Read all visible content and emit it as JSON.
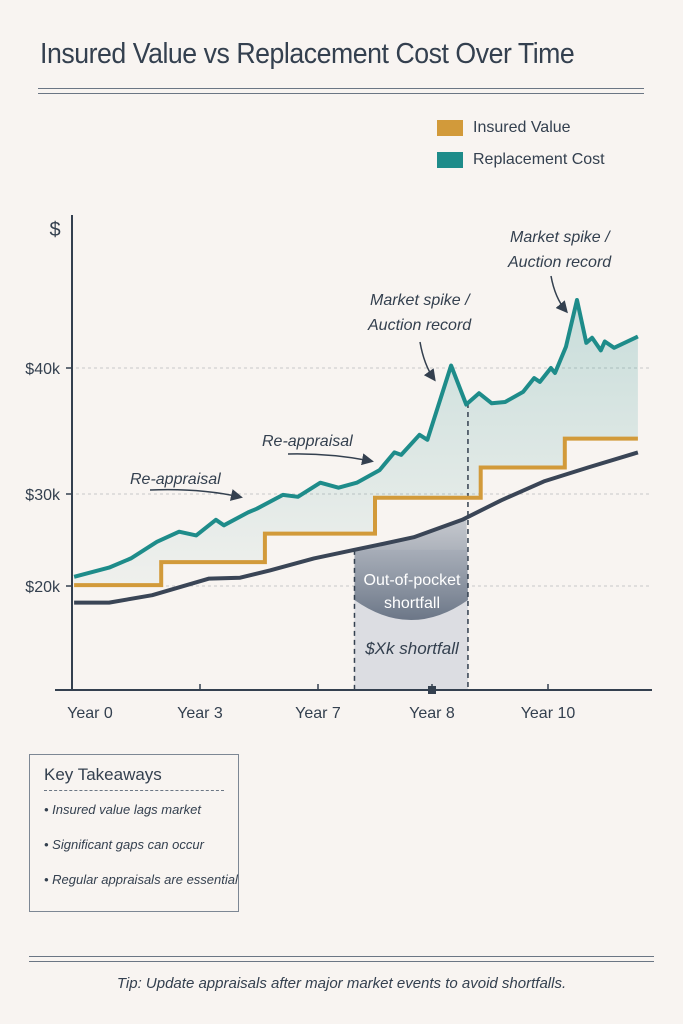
{
  "title": "Insured Value vs Replacement Cost Over Time",
  "legend": [
    {
      "label": "Insured Value",
      "color": "#d29a3a"
    },
    {
      "label": "Replacement Cost",
      "color": "#1e8c8a"
    }
  ],
  "chart_data": {
    "type": "line",
    "title": "Insured Value vs Replacement Cost Over Time",
    "ylabel": "$",
    "y_ticks": [
      "$20k",
      "$30k",
      "$40k"
    ],
    "y_tick_values": [
      20,
      30,
      40
    ],
    "x_ticks": [
      "Year 0",
      "Year 3",
      "Year 7",
      "Year 8",
      "Year 10"
    ],
    "x_tick_values": [
      0,
      3,
      7,
      8,
      10
    ],
    "grid": "horizontal dashed at y ticks",
    "legend_position": "top-right",
    "series": [
      {
        "name": "Replacement Cost",
        "color": "#1e8c8a",
        "style": "line",
        "x": [
          0.05,
          0.87,
          1.38,
          1.99,
          2.51,
          2.91,
          3.54,
          3.81,
          4.63,
          4.93,
          5.81,
          6.32,
          7.02,
          7.18,
          7.34,
          7.54,
          7.67,
          7.73,
          7.89,
          7.96,
          8.33,
          8.59,
          8.81,
          9.03,
          9.26,
          9.57,
          9.76,
          9.86,
          10.05,
          10.12,
          10.31,
          10.5,
          10.66,
          10.76,
          10.91,
          10.98,
          11.14,
          11.55
        ],
        "y": [
          21.0,
          22.0,
          23.0,
          24.8,
          25.9,
          25.5,
          27.2,
          26.6,
          28.0,
          28.4,
          29.9,
          29.7,
          30.9,
          30.5,
          30.9,
          31.9,
          33.3,
          33.1,
          34.7,
          34.3,
          40.2,
          37.1,
          38.0,
          37.2,
          37.3,
          38.1,
          39.2,
          38.9,
          40.0,
          39.6,
          41.7,
          45.4,
          42.0,
          42.4,
          41.4,
          42.1,
          41.6,
          42.5
        ]
      },
      {
        "name": "Insured Value",
        "color": "#d29a3a",
        "style": "step",
        "x": [
          0.05,
          2.09,
          5.2,
          7.5,
          8.84,
          10.29,
          11.55
        ],
        "y": [
          20.1,
          22.6,
          25.7,
          29.6,
          32.1,
          34.4,
          34.4
        ]
      },
      {
        "color": "#3a4556",
        "style": "line",
        "x": [
          0.05,
          0.87,
          1.88,
          3.31,
          4.36,
          5.37,
          6.86,
          7.31,
          7.54,
          7.84,
          8.52,
          9.19,
          9.93,
          10.69,
          11.55
        ],
        "y": [
          18.2,
          18.2,
          19.0,
          20.8,
          20.9,
          21.7,
          23.0,
          23.9,
          24.5,
          25.3,
          27.2,
          29.3,
          31.0,
          32.1,
          33.3
        ]
      }
    ],
    "shortfall_region": {
      "x_start": 7.32,
      "x_end": 8.62
    },
    "annotations": {
      "reappraisal_1": "Re-appraisal",
      "reappraisal_2": "Re-appraisal",
      "spike_1_line1": "Market spike /",
      "spike_1_line2": "Auction record",
      "spike_2_line1": "Market spike /",
      "spike_2_line2": "Auction record",
      "shortfall_line1": "Out-of-pocket",
      "shortfall_line2": "shortfall",
      "shortfall_amount": "$Xk shortfall"
    }
  },
  "takeaways": {
    "heading": "Key Takeaways",
    "items": [
      "Insured value lags market",
      "Significant gaps can occur",
      "Regular appraisals are essential"
    ]
  },
  "tip": "Tip: Update appraisals after major market events to avoid shortfalls."
}
